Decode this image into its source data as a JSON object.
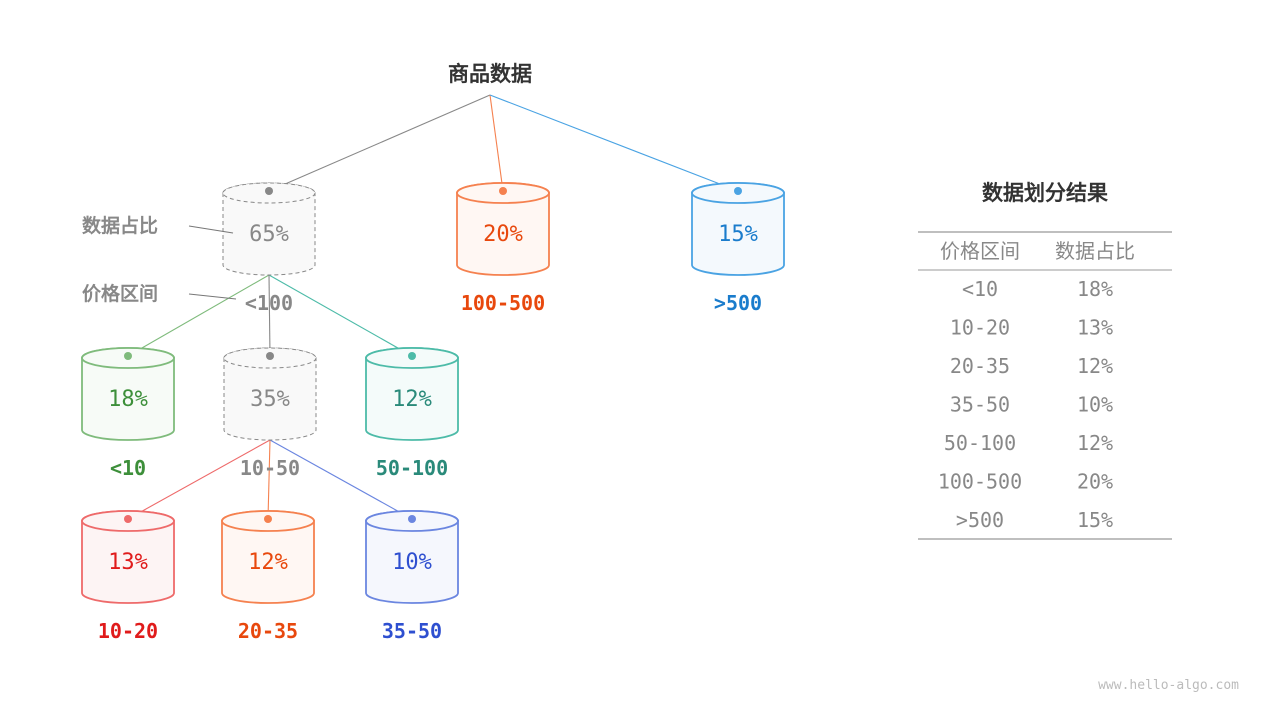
{
  "root": {
    "label": "商品数据"
  },
  "legend": {
    "ratio_label": "数据占比",
    "range_label": "价格区间"
  },
  "nodes": [
    {
      "id": "lt100",
      "percent": "65%",
      "range": "<100",
      "color": "#888888",
      "fill": "#f9f9f9",
      "text_color": "#888888",
      "dashed": true,
      "parent": "root"
    },
    {
      "id": "100-500",
      "percent": "20%",
      "range": "100-500",
      "color": "#f5814f",
      "fill": "#fff7f3",
      "text_color": "#e8480d",
      "dashed": false,
      "parent": "root"
    },
    {
      "id": "gt500",
      "percent": "15%",
      "range": ">500",
      "color": "#4aa3e3",
      "fill": "#f4f9fd",
      "text_color": "#1a7ccc",
      "dashed": false,
      "parent": "root"
    },
    {
      "id": "lt10",
      "percent": "18%",
      "range": "<10",
      "color": "#7fbb7c",
      "fill": "#f7fbf7",
      "text_color": "#3d8f3a",
      "dashed": false,
      "parent": "lt100"
    },
    {
      "id": "10-50",
      "percent": "35%",
      "range": "10-50",
      "color": "#888888",
      "fill": "#f9f9f9",
      "text_color": "#888888",
      "dashed": true,
      "parent": "lt100"
    },
    {
      "id": "50-100",
      "percent": "12%",
      "range": "50-100",
      "color": "#4dbba8",
      "fill": "#f4fbfa",
      "text_color": "#2a8a7a",
      "dashed": false,
      "parent": "lt100"
    },
    {
      "id": "10-20",
      "percent": "13%",
      "range": "10-20",
      "color": "#ee6a6a",
      "fill": "#fdf4f4",
      "text_color": "#e01b1b",
      "dashed": false,
      "parent": "10-50"
    },
    {
      "id": "20-35",
      "percent": "12%",
      "range": "20-35",
      "color": "#f5814f",
      "fill": "#fff7f3",
      "text_color": "#e8480d",
      "dashed": false,
      "parent": "10-50"
    },
    {
      "id": "35-50",
      "percent": "10%",
      "range": "35-50",
      "color": "#6b86e0",
      "fill": "#f5f7fd",
      "text_color": "#2e4fd0",
      "dashed": false,
      "parent": "10-50"
    }
  ],
  "result_table": {
    "title": "数据划分结果",
    "headers": [
      "价格区间",
      "数据占比"
    ],
    "rows": [
      [
        "<10",
        "18%"
      ],
      [
        "10-20",
        "13%"
      ],
      [
        "20-35",
        "12%"
      ],
      [
        "35-50",
        "10%"
      ],
      [
        "50-100",
        "12%"
      ],
      [
        "100-500",
        "20%"
      ],
      [
        ">500",
        "15%"
      ]
    ]
  },
  "watermark": "www.hello-algo.com"
}
